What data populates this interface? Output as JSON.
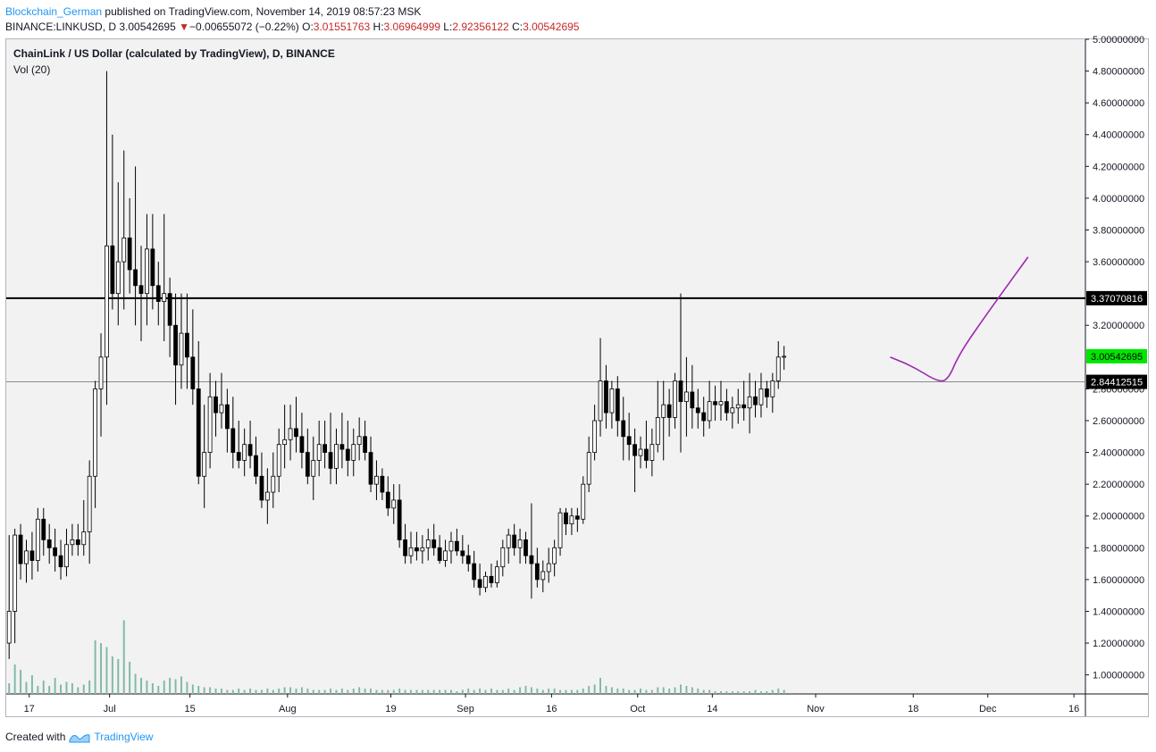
{
  "header": {
    "author": "Blockchain_German",
    "published_text": "published on TradingView.com, November 14, 2019 08:57:23 MSK"
  },
  "symbol_line": {
    "symbol": "BINANCE:LINKUSD, D",
    "last": "3.00542695",
    "arrow": "▼",
    "change": "−0.00655072 (−0.22%)",
    "o_label": "O:",
    "o_value": "3.01551763",
    "h_label": "H:",
    "h_value": "3.06964999",
    "l_label": "L:",
    "l_value": "2.92356122",
    "c_label": "C:",
    "c_value": "3.00542695"
  },
  "legend": {
    "title": "ChainLink / US Dollar (calculated by TradingView), D, BINANCE",
    "volume": "Vol (20)"
  },
  "footer": {
    "created_with": "Created with",
    "brand": "TradingView"
  },
  "colors": {
    "background": "#f2f2f2",
    "candle_body_up": "#ffffff",
    "candle_body_down": "#000000",
    "candle_outline": "#000000",
    "volume": "#7fb8a8",
    "projection": "#9c27b0",
    "last_price_label": "#00e600",
    "level_label": "#000000"
  },
  "chart_data": {
    "type": "candlestick",
    "title": "ChainLink / US Dollar (calculated by TradingView), D, BINANCE",
    "ylim": [
      0.88,
      5.0
    ],
    "y_ticks": [
      "1.00000000",
      "1.20000000",
      "1.40000000",
      "1.60000000",
      "1.80000000",
      "2.00000000",
      "2.20000000",
      "2.40000000",
      "2.60000000",
      "2.80000000",
      "3.20000000",
      "3.60000000",
      "3.80000000",
      "4.00000000",
      "4.20000000",
      "4.40000000",
      "4.60000000",
      "4.80000000",
      "5.00000000"
    ],
    "x_start_date": "2019-06-13",
    "x_end_date": "2019-12-18",
    "x_ticks": [
      {
        "label": "17",
        "date": "2019-06-17"
      },
      {
        "label": "Jul",
        "date": "2019-07-01"
      },
      {
        "label": "15",
        "date": "2019-07-15"
      },
      {
        "label": "Aug",
        "date": "2019-08-01"
      },
      {
        "label": "19",
        "date": "2019-08-19"
      },
      {
        "label": "Sep",
        "date": "2019-09-01"
      },
      {
        "label": "16",
        "date": "2019-09-16"
      },
      {
        "label": "Oct",
        "date": "2019-10-01"
      },
      {
        "label": "14",
        "date": "2019-10-14"
      },
      {
        "label": "Nov",
        "date": "2019-11-01"
      },
      {
        "label": "18",
        "date": "2019-11-18"
      },
      {
        "label": "Dec",
        "date": "2019-12-01"
      },
      {
        "label": "16",
        "date": "2019-12-16"
      }
    ],
    "horizontal_levels": [
      {
        "value": 3.37070816,
        "label": "3.37070816",
        "style": "thick-black"
      },
      {
        "value": 2.84412515,
        "label": "2.84412515",
        "style": "thin-gray"
      }
    ],
    "last_price": {
      "value": 3.00542695,
      "label": "3.00542695"
    },
    "projection": [
      [
        "2019-11-14",
        3.0
      ],
      [
        "2019-11-18",
        2.94
      ],
      [
        "2019-11-22",
        2.85
      ],
      [
        "2019-11-24",
        2.85
      ],
      [
        "2019-11-26",
        3.02
      ],
      [
        "2019-12-01",
        3.28
      ],
      [
        "2019-12-05",
        3.48
      ],
      [
        "2019-12-08",
        3.63
      ]
    ],
    "candles": [
      [
        1.2,
        1.88,
        1.1,
        1.4
      ],
      [
        1.4,
        1.92,
        1.2,
        1.88
      ],
      [
        1.88,
        1.95,
        1.6,
        1.7
      ],
      [
        1.7,
        1.85,
        1.58,
        1.78
      ],
      [
        1.78,
        1.9,
        1.6,
        1.72
      ],
      [
        1.72,
        2.05,
        1.65,
        1.98
      ],
      [
        1.98,
        2.05,
        1.75,
        1.85
      ],
      [
        1.85,
        1.95,
        1.7,
        1.8
      ],
      [
        1.8,
        1.92,
        1.65,
        1.75
      ],
      [
        1.75,
        1.85,
        1.6,
        1.68
      ],
      [
        1.68,
        1.92,
        1.62,
        1.82
      ],
      [
        1.82,
        1.95,
        1.75,
        1.85
      ],
      [
        1.85,
        1.95,
        1.75,
        1.82
      ],
      [
        1.82,
        2.1,
        1.75,
        1.9
      ],
      [
        1.9,
        2.35,
        1.7,
        2.25
      ],
      [
        2.25,
        2.85,
        2.05,
        2.8
      ],
      [
        2.8,
        3.15,
        2.5,
        3.0
      ],
      [
        3.0,
        4.8,
        2.7,
        3.7
      ],
      [
        3.7,
        4.4,
        3.3,
        3.4
      ],
      [
        3.4,
        4.1,
        3.2,
        3.6
      ],
      [
        3.6,
        4.3,
        3.3,
        3.75
      ],
      [
        3.75,
        4.0,
        3.4,
        3.55
      ],
      [
        3.55,
        4.2,
        3.2,
        3.45
      ],
      [
        3.45,
        3.7,
        3.1,
        3.4
      ],
      [
        3.4,
        3.9,
        3.2,
        3.68
      ],
      [
        3.68,
        3.9,
        3.3,
        3.45
      ],
      [
        3.45,
        3.6,
        3.2,
        3.35
      ],
      [
        3.35,
        3.9,
        3.1,
        3.4
      ],
      [
        3.4,
        3.5,
        3.0,
        3.2
      ],
      [
        3.2,
        3.4,
        2.7,
        2.95
      ],
      [
        2.95,
        3.4,
        2.8,
        3.15
      ],
      [
        3.15,
        3.4,
        2.8,
        3.0
      ],
      [
        3.0,
        3.3,
        2.7,
        2.8
      ],
      [
        2.8,
        3.1,
        2.2,
        2.25
      ],
      [
        2.25,
        2.7,
        2.05,
        2.4
      ],
      [
        2.4,
        2.9,
        2.3,
        2.75
      ],
      [
        2.75,
        2.85,
        2.5,
        2.65
      ],
      [
        2.65,
        2.9,
        2.55,
        2.7
      ],
      [
        2.7,
        2.8,
        2.4,
        2.55
      ],
      [
        2.55,
        2.75,
        2.3,
        2.4
      ],
      [
        2.4,
        2.6,
        2.3,
        2.35
      ],
      [
        2.35,
        2.55,
        2.25,
        2.45
      ],
      [
        2.45,
        2.6,
        2.3,
        2.38
      ],
      [
        2.38,
        2.5,
        2.2,
        2.25
      ],
      [
        2.25,
        2.4,
        2.05,
        2.1
      ],
      [
        2.1,
        2.3,
        1.95,
        2.15
      ],
      [
        2.15,
        2.4,
        2.05,
        2.25
      ],
      [
        2.25,
        2.55,
        2.15,
        2.45
      ],
      [
        2.45,
        2.7,
        2.3,
        2.48
      ],
      [
        2.48,
        2.7,
        2.35,
        2.55
      ],
      [
        2.55,
        2.75,
        2.4,
        2.5
      ],
      [
        2.5,
        2.65,
        2.3,
        2.4
      ],
      [
        2.4,
        2.55,
        2.2,
        2.25
      ],
      [
        2.25,
        2.5,
        2.1,
        2.35
      ],
      [
        2.35,
        2.6,
        2.25,
        2.45
      ],
      [
        2.45,
        2.6,
        2.3,
        2.4
      ],
      [
        2.4,
        2.65,
        2.2,
        2.3
      ],
      [
        2.3,
        2.55,
        2.2,
        2.45
      ],
      [
        2.45,
        2.65,
        2.3,
        2.42
      ],
      [
        2.42,
        2.6,
        2.25,
        2.35
      ],
      [
        2.35,
        2.55,
        2.25,
        2.45
      ],
      [
        2.45,
        2.62,
        2.35,
        2.5
      ],
      [
        2.5,
        2.6,
        2.35,
        2.4
      ],
      [
        2.4,
        2.5,
        2.15,
        2.2
      ],
      [
        2.2,
        2.35,
        2.1,
        2.25
      ],
      [
        2.25,
        2.3,
        2.1,
        2.15
      ],
      [
        2.15,
        2.25,
        2.0,
        2.05
      ],
      [
        2.05,
        2.2,
        1.95,
        2.1
      ],
      [
        2.1,
        2.2,
        1.8,
        1.85
      ],
      [
        1.85,
        1.95,
        1.7,
        1.75
      ],
      [
        1.75,
        1.9,
        1.7,
        1.8
      ],
      [
        1.8,
        1.9,
        1.72,
        1.78
      ],
      [
        1.78,
        1.88,
        1.7,
        1.8
      ],
      [
        1.8,
        1.92,
        1.72,
        1.85
      ],
      [
        1.85,
        1.95,
        1.75,
        1.8
      ],
      [
        1.8,
        1.88,
        1.7,
        1.72
      ],
      [
        1.72,
        1.85,
        1.68,
        1.78
      ],
      [
        1.78,
        1.9,
        1.7,
        1.84
      ],
      [
        1.84,
        1.92,
        1.75,
        1.78
      ],
      [
        1.78,
        1.88,
        1.7,
        1.75
      ],
      [
        1.75,
        1.82,
        1.65,
        1.7
      ],
      [
        1.7,
        1.78,
        1.55,
        1.6
      ],
      [
        1.6,
        1.7,
        1.5,
        1.55
      ],
      [
        1.55,
        1.65,
        1.52,
        1.62
      ],
      [
        1.62,
        1.7,
        1.55,
        1.58
      ],
      [
        1.58,
        1.72,
        1.55,
        1.68
      ],
      [
        1.68,
        1.85,
        1.62,
        1.8
      ],
      [
        1.8,
        1.92,
        1.7,
        1.88
      ],
      [
        1.88,
        1.95,
        1.75,
        1.8
      ],
      [
        1.8,
        1.92,
        1.7,
        1.85
      ],
      [
        1.85,
        1.9,
        1.7,
        1.75
      ],
      [
        1.75,
        2.08,
        1.48,
        1.7
      ],
      [
        1.7,
        1.8,
        1.55,
        1.6
      ],
      [
        1.6,
        1.72,
        1.52,
        1.65
      ],
      [
        1.65,
        1.8,
        1.58,
        1.7
      ],
      [
        1.7,
        1.85,
        1.62,
        1.8
      ],
      [
        1.8,
        2.05,
        1.75,
        2.02
      ],
      [
        2.02,
        2.05,
        1.88,
        1.95
      ],
      [
        1.95,
        2.05,
        1.88,
        2.0
      ],
      [
        2.0,
        2.05,
        1.9,
        1.98
      ],
      [
        1.98,
        2.25,
        1.95,
        2.2
      ],
      [
        2.2,
        2.5,
        2.15,
        2.4
      ],
      [
        2.4,
        2.7,
        2.35,
        2.6
      ],
      [
        2.6,
        3.12,
        2.5,
        2.85
      ],
      [
        2.85,
        2.95,
        2.55,
        2.65
      ],
      [
        2.65,
        2.85,
        2.55,
        2.8
      ],
      [
        2.8,
        2.88,
        2.5,
        2.6
      ],
      [
        2.6,
        2.75,
        2.35,
        2.5
      ],
      [
        2.5,
        2.65,
        2.35,
        2.45
      ],
      [
        2.45,
        2.55,
        2.15,
        2.38
      ],
      [
        2.38,
        2.5,
        2.3,
        2.42
      ],
      [
        2.42,
        2.6,
        2.3,
        2.35
      ],
      [
        2.35,
        2.55,
        2.25,
        2.45
      ],
      [
        2.45,
        2.85,
        2.4,
        2.62
      ],
      [
        2.62,
        2.85,
        2.35,
        2.7
      ],
      [
        2.7,
        2.8,
        2.5,
        2.62
      ],
      [
        2.62,
        2.9,
        2.55,
        2.85
      ],
      [
        2.85,
        3.4,
        2.4,
        2.72
      ],
      [
        2.72,
        3.0,
        2.5,
        2.78
      ],
      [
        2.78,
        2.95,
        2.55,
        2.68
      ],
      [
        2.68,
        2.8,
        2.55,
        2.65
      ],
      [
        2.65,
        2.75,
        2.5,
        2.6
      ],
      [
        2.6,
        2.85,
        2.55,
        2.72
      ],
      [
        2.72,
        2.82,
        2.6,
        2.7
      ],
      [
        2.7,
        2.85,
        2.6,
        2.72
      ],
      [
        2.72,
        2.8,
        2.6,
        2.65
      ],
      [
        2.65,
        2.75,
        2.55,
        2.68
      ],
      [
        2.68,
        2.8,
        2.58,
        2.7
      ],
      [
        2.7,
        2.85,
        2.6,
        2.68
      ],
      [
        2.68,
        2.9,
        2.52,
        2.75
      ],
      [
        2.75,
        2.85,
        2.62,
        2.7
      ],
      [
        2.7,
        2.9,
        2.62,
        2.8
      ],
      [
        2.8,
        2.85,
        2.68,
        2.75
      ],
      [
        2.75,
        2.9,
        2.65,
        2.85
      ],
      [
        2.85,
        3.1,
        2.8,
        3.0
      ],
      [
        3.0,
        3.07,
        2.92,
        3.005
      ]
    ],
    "volume": [
      0.08,
      0.22,
      0.18,
      0.09,
      0.14,
      0.06,
      0.1,
      0.06,
      0.12,
      0.07,
      0.09,
      0.08,
      0.05,
      0.07,
      0.1,
      0.4,
      0.38,
      0.35,
      0.28,
      0.26,
      0.55,
      0.24,
      0.15,
      0.12,
      0.1,
      0.08,
      0.06,
      0.1,
      0.12,
      0.11,
      0.13,
      0.09,
      0.07,
      0.06,
      0.05,
      0.05,
      0.04,
      0.04,
      0.03,
      0.03,
      0.04,
      0.03,
      0.04,
      0.03,
      0.03,
      0.04,
      0.03,
      0.04,
      0.05,
      0.05,
      0.04,
      0.05,
      0.04,
      0.03,
      0.03,
      0.03,
      0.04,
      0.03,
      0.04,
      0.03,
      0.04,
      0.05,
      0.04,
      0.04,
      0.03,
      0.03,
      0.03,
      0.03,
      0.04,
      0.03,
      0.03,
      0.03,
      0.03,
      0.03,
      0.03,
      0.03,
      0.03,
      0.03,
      0.02,
      0.03,
      0.04,
      0.03,
      0.04,
      0.03,
      0.04,
      0.03,
      0.03,
      0.04,
      0.03,
      0.05,
      0.06,
      0.05,
      0.04,
      0.03,
      0.04,
      0.04,
      0.03,
      0.03,
      0.03,
      0.03,
      0.04,
      0.06,
      0.07,
      0.12,
      0.06,
      0.05,
      0.04,
      0.04,
      0.03,
      0.03,
      0.04,
      0.03,
      0.03,
      0.05,
      0.05,
      0.04,
      0.05,
      0.07,
      0.06,
      0.05,
      0.04,
      0.03,
      0.03,
      0.02,
      0.02,
      0.02,
      0.02,
      0.02,
      0.02,
      0.02,
      0.03,
      0.02,
      0.02,
      0.03,
      0.04,
      0.03
    ]
  }
}
